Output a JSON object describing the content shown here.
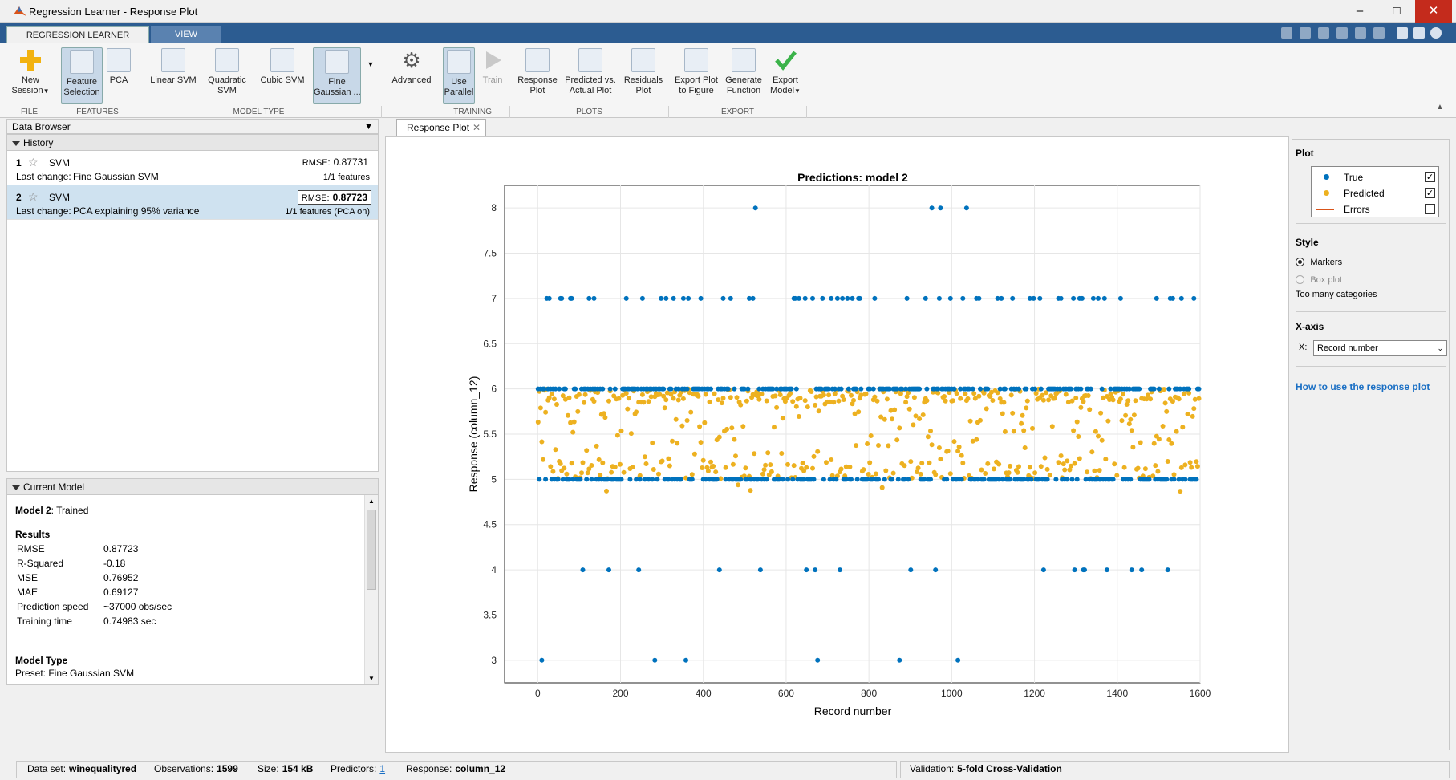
{
  "window": {
    "title": "Regression Learner - Response Plot"
  },
  "tabs": [
    {
      "label": "REGRESSION LEARNER"
    },
    {
      "label": "VIEW"
    }
  ],
  "toolstrip": {
    "new_session": "New\nSession",
    "feature_selection": "Feature\nSelection",
    "pca": "PCA",
    "linear_svm": "Linear SVM",
    "quadratic_svm": "Quadratic\nSVM",
    "cubic_svm": "Cubic SVM",
    "fine_gaussian": "Fine\nGaussian ...",
    "advanced": "Advanced",
    "use_parallel": "Use\nParallel",
    "train": "Train",
    "response_plot": "Response\nPlot",
    "predicted_vs_actual": "Predicted vs.\nActual Plot",
    "residuals_plot": "Residuals\nPlot",
    "export_plot": "Export Plot\nto Figure",
    "generate_function": "Generate\nFunction",
    "export_model": "Export\nModel",
    "sections": {
      "file": "FILE",
      "features": "FEATURES",
      "model_type": "MODEL TYPE",
      "training": "TRAINING",
      "plots": "PLOTS",
      "export": "EXPORT"
    }
  },
  "data_browser": {
    "title": "Data Browser"
  },
  "history": {
    "title": "History",
    "items": [
      {
        "num": "1",
        "model": "SVM",
        "rmse_label": "RMSE:",
        "rmse": "0.87731",
        "last_change_label": "Last change:",
        "last_change": "Fine Gaussian SVM",
        "features": "1/1 features"
      },
      {
        "num": "2",
        "model": "SVM",
        "rmse_label": "RMSE:",
        "rmse": "0.87723",
        "last_change_label": "Last change:",
        "last_change": "PCA explaining 95% variance",
        "features": "1/1 features (PCA on)"
      }
    ]
  },
  "current_model": {
    "title": "Current Model",
    "model_name": "Model 2",
    "status": ": Trained",
    "results_title": "Results",
    "results": [
      {
        "k": "RMSE",
        "v": "0.87723"
      },
      {
        "k": "R-Squared",
        "v": "-0.18"
      },
      {
        "k": "MSE",
        "v": "0.76952"
      },
      {
        "k": "MAE",
        "v": "0.69127"
      },
      {
        "k": "Prediction speed",
        "v": "~37000 obs/sec"
      },
      {
        "k": "Training time",
        "v": "0.74983 sec"
      }
    ],
    "model_type_title": "Model Type",
    "preset": "Preset: Fine Gaussian SVM"
  },
  "plot_tab": {
    "label": "Response Plot"
  },
  "chart_data": {
    "type": "scatter",
    "title": "Predictions: model 2",
    "xlabel": "Record number",
    "ylabel": "Response (column_12)",
    "xlim": [
      -80,
      1600
    ],
    "ylim": [
      2.75,
      8.25
    ],
    "xticks": [
      0,
      200,
      400,
      600,
      800,
      1000,
      1200,
      1400,
      1600
    ],
    "yticks": [
      3,
      3.5,
      4,
      4.5,
      5,
      5.5,
      6,
      6.5,
      7,
      7.5,
      8
    ],
    "grid": true,
    "n_points": 1599,
    "series": [
      {
        "name": "True",
        "color": "#0072bd",
        "levels": [
          3,
          4,
          5,
          6,
          7,
          8
        ]
      },
      {
        "name": "Predicted",
        "color": "#edb120",
        "range": [
          4.8,
          6.05
        ]
      }
    ]
  },
  "right_panel": {
    "plot_title": "Plot",
    "legend": [
      {
        "label": "True",
        "color": "#0072bd",
        "checked": true
      },
      {
        "label": "Predicted",
        "color": "#edb120",
        "checked": true
      },
      {
        "label": "Errors",
        "color": "#d95319",
        "checked": false
      }
    ],
    "style_title": "Style",
    "markers": "Markers",
    "box_plot": "Box plot",
    "too_many": "Too many categories",
    "xaxis_title": "X-axis",
    "x_label": "X:",
    "x_value": "Record number",
    "help_link": "How to use the response plot"
  },
  "status": {
    "dataset_label": "Data set:",
    "dataset": "winequalityred",
    "obs_label": "Observations:",
    "obs": "1599",
    "size_label": "Size:",
    "size": "154 kB",
    "pred_label": "Predictors:",
    "pred": "1",
    "resp_label": "Response:",
    "resp": "column_12",
    "val_label": "Validation:",
    "val": "5-fold Cross-Validation"
  }
}
